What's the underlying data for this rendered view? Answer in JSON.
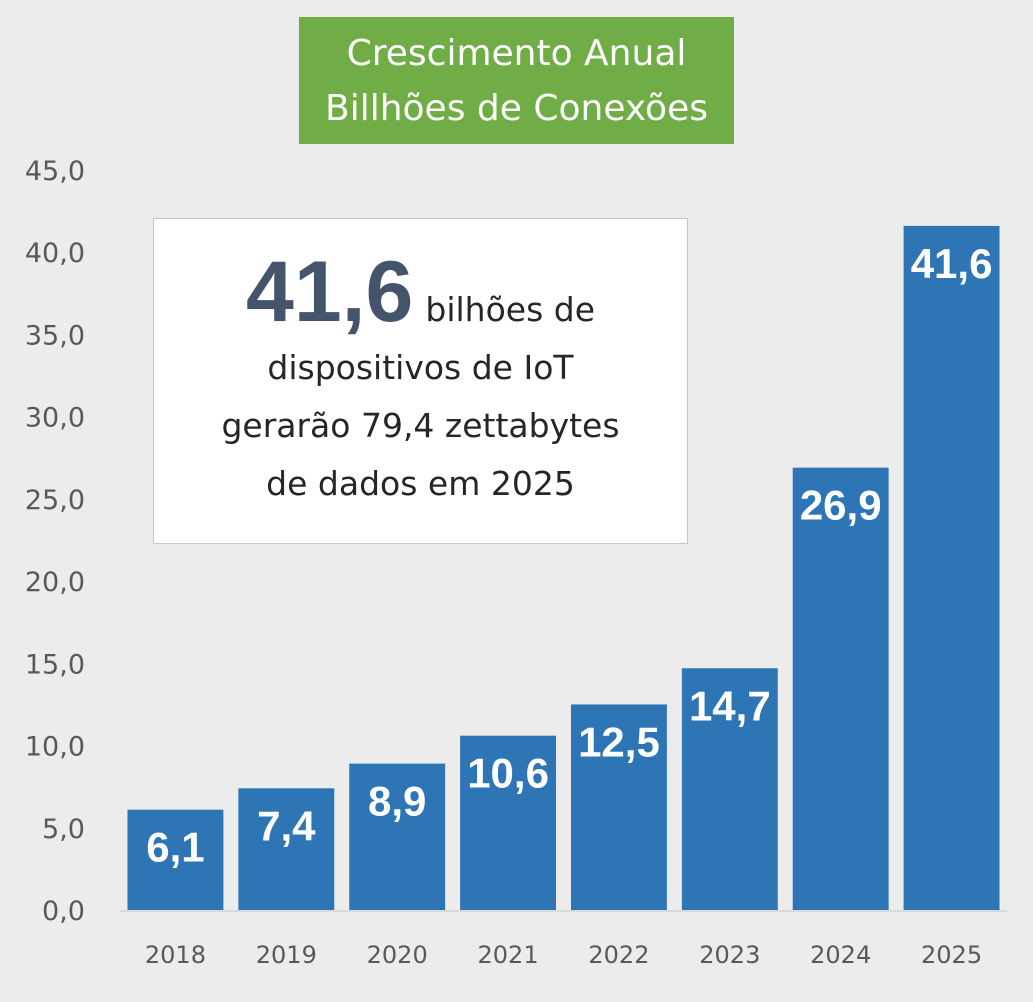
{
  "title": {
    "line1": "Crescimento Anual",
    "line2": "Billhões de Conexões"
  },
  "callout": {
    "highlight": "41,6",
    "text_line1": "bilhões de",
    "text_line2": "dispositivos de IoT",
    "text_line3": "gerarão 79,4 zettabytes",
    "text_line4": "de dados em 2025"
  },
  "colors": {
    "bar": "#2e75b6",
    "title_background": "#70ad47",
    "background": "#ececec",
    "axis_line": "#d9d9d9"
  },
  "chart_data": {
    "type": "bar",
    "categories": [
      "2018",
      "2019",
      "2020",
      "2021",
      "2022",
      "2023",
      "2024",
      "2025"
    ],
    "values": [
      6.1,
      7.4,
      8.9,
      10.6,
      12.5,
      14.7,
      26.9,
      41.6
    ],
    "data_labels": [
      "6,1",
      "7,4",
      "8,9",
      "10,6",
      "12,5",
      "14,7",
      "26,9",
      "41,6"
    ],
    "ylim": [
      0,
      45
    ],
    "yticks": [
      "0,0",
      "5,0",
      "10,0",
      "15,0",
      "20,0",
      "25,0",
      "30,0",
      "35,0",
      "40,0",
      "45,0"
    ],
    "ytick_step": 5,
    "grid": false
  }
}
